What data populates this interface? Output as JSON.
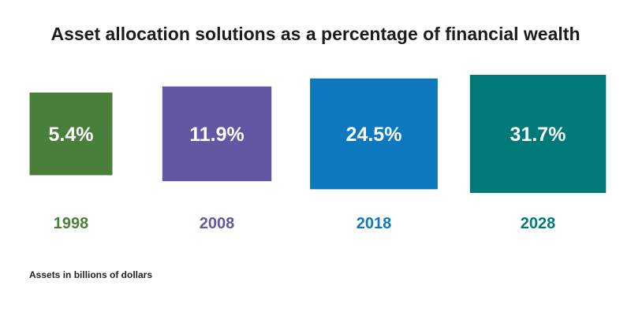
{
  "chart_data": {
    "type": "bar",
    "title": "Asset allocation solutions as a percentage of financial wealth",
    "categories": [
      "1998",
      "2008",
      "2018",
      "2028"
    ],
    "values": [
      5.4,
      11.9,
      24.5,
      31.7
    ],
    "value_labels": [
      "5.4%",
      "11.9%",
      "24.5%",
      "31.7%"
    ],
    "colors": [
      "#4a7f3b",
      "#6257a3",
      "#0d78bd",
      "#007a78"
    ],
    "note": "Assets in billions of dollars",
    "xlabel": "",
    "ylabel": ""
  }
}
